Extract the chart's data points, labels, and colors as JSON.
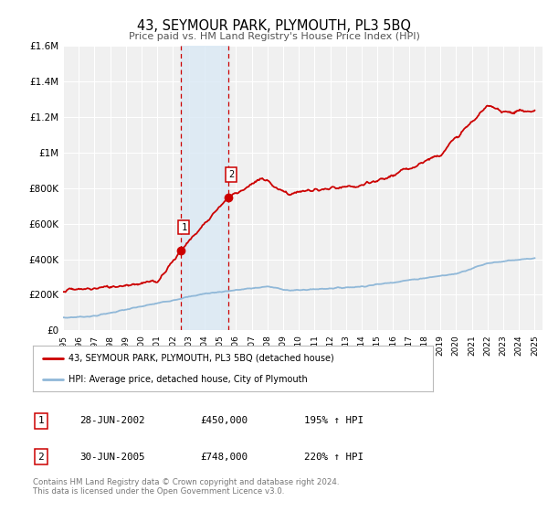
{
  "title": "43, SEYMOUR PARK, PLYMOUTH, PL3 5BQ",
  "subtitle": "Price paid vs. HM Land Registry's House Price Index (HPI)",
  "ylim": [
    0,
    1600000
  ],
  "xlim_start": 1995.0,
  "xlim_end": 2025.5,
  "background_color": "#ffffff",
  "plot_bg_color": "#f0f0f0",
  "grid_color": "#ffffff",
  "sale1_date": 2002.49,
  "sale1_price": 450000,
  "sale2_date": 2005.49,
  "sale2_price": 748000,
  "hpi_line_color": "#90b8d8",
  "property_line_color": "#cc0000",
  "property_line_label": "43, SEYMOUR PARK, PLYMOUTH, PL3 5BQ (detached house)",
  "hpi_line_label": "HPI: Average price, detached house, City of Plymouth",
  "legend1_date": "28-JUN-2002",
  "legend1_price": "£450,000",
  "legend1_hpi": "195% ↑ HPI",
  "legend2_date": "30-JUN-2005",
  "legend2_price": "£748,000",
  "legend2_hpi": "220% ↑ HPI",
  "footnote": "Contains HM Land Registry data © Crown copyright and database right 2024.\nThis data is licensed under the Open Government Licence v3.0.",
  "ytick_labels": [
    "£0",
    "£200K",
    "£400K",
    "£600K",
    "£800K",
    "£1M",
    "£1.2M",
    "£1.4M",
    "£1.6M"
  ],
  "ytick_values": [
    0,
    200000,
    400000,
    600000,
    800000,
    1000000,
    1200000,
    1400000,
    1600000
  ],
  "xtick_years": [
    1995,
    1996,
    1997,
    1998,
    1999,
    2000,
    2001,
    2002,
    2003,
    2004,
    2005,
    2006,
    2007,
    2008,
    2009,
    2010,
    2011,
    2012,
    2013,
    2014,
    2015,
    2016,
    2017,
    2018,
    2019,
    2020,
    2021,
    2022,
    2023,
    2024,
    2025
  ]
}
